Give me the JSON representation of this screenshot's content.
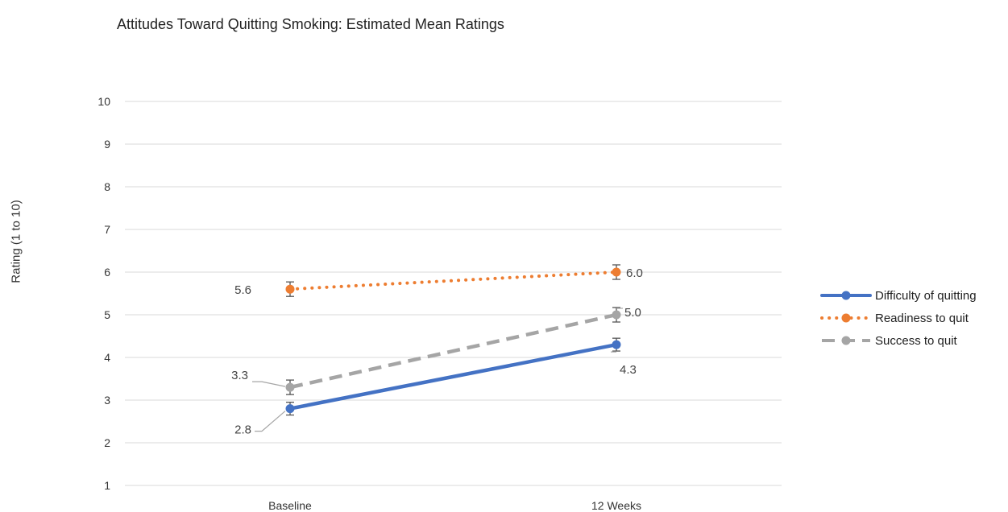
{
  "chart_data": {
    "type": "line",
    "title": "Attitudes Toward Quitting Smoking: Estimated Mean Ratings",
    "xlabel": "",
    "ylabel": "Rating (1 to 10)",
    "categories": [
      "Baseline",
      "12 Weeks"
    ],
    "ylim": [
      1,
      10
    ],
    "yticks": [
      "1",
      "2",
      "3",
      "4",
      "5",
      "6",
      "7",
      "8",
      "9",
      "10"
    ],
    "grid": true,
    "legend_position": "right",
    "series": [
      {
        "name": "Difficulty of quitting",
        "values": [
          2.8,
          4.3
        ],
        "labels": [
          "2.8",
          "4.3"
        ],
        "error": [
          0.15,
          0.15
        ],
        "color": "#4472C4",
        "dash": "solid"
      },
      {
        "name": "Readiness to quit",
        "values": [
          5.6,
          6.0
        ],
        "labels": [
          "5.6",
          "6.0"
        ],
        "error": [
          0.17,
          0.17
        ],
        "color": "#ED7D31",
        "dash": "dotted"
      },
      {
        "name": "Success to quit",
        "values": [
          3.3,
          5.0
        ],
        "labels": [
          "3.3",
          "5.0"
        ],
        "error": [
          0.17,
          0.17
        ],
        "color": "#A5A5A5",
        "dash": "dashed"
      }
    ]
  }
}
